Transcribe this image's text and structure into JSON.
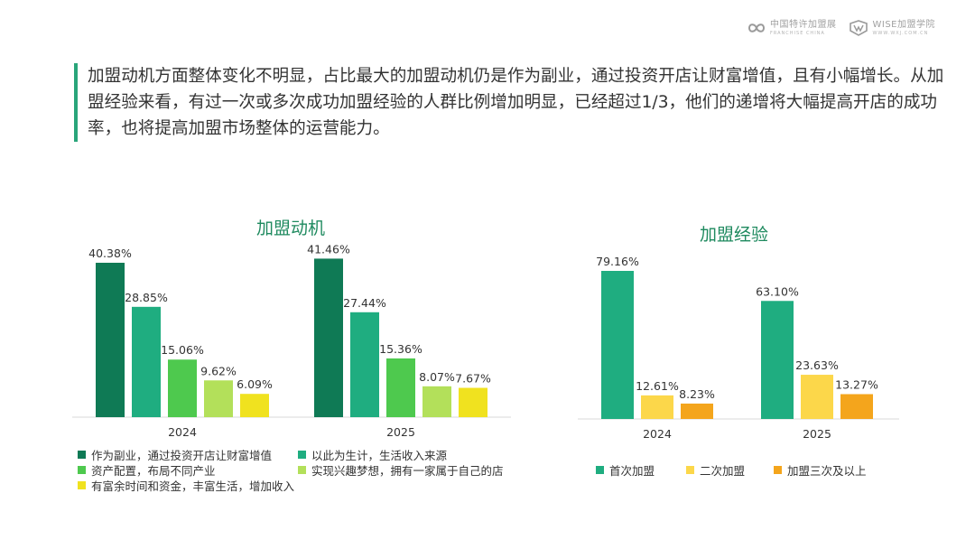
{
  "brand": {
    "logo1_main": "中国特许加盟展",
    "logo1_sub": "FRANCHISE CHINA",
    "logo2_main": "WISE加盟学院",
    "logo2_sub": "WWW.WXJ.COM.CN"
  },
  "intro_text": "加盟动机方面整体变化不明显，占比最大的加盟动机仍是作为副业，通过投资开店让财富增值，且有小幅增长。从加盟经验来看，有过一次或多次成功加盟经验的人群比例增加明显，已经超过1/3，他们的递增将大幅提高开店的成功率，也将提高加盟市场整体的运营能力。",
  "chart_data": [
    {
      "type": "bar",
      "title": "加盟动机",
      "categories": [
        "2024",
        "2025"
      ],
      "series": [
        {
          "name": "作为副业，通过投资开店让财富增值",
          "values": [
            40.38,
            41.46
          ],
          "labels": [
            "40.38%",
            "41.46%"
          ],
          "color": "#0f7a55"
        },
        {
          "name": "以此为生计，生活收入来源",
          "values": [
            28.85,
            27.44
          ],
          "labels": [
            "28.85%",
            "27.44%"
          ],
          "color": "#1fad80"
        },
        {
          "name": "资产配置，布局不同产业",
          "values": [
            15.06,
            15.36
          ],
          "labels": [
            "15.06%",
            "15.36%"
          ],
          "color": "#4ec94e"
        },
        {
          "name": "实现兴趣梦想，拥有一家属于自己的店",
          "values": [
            9.62,
            8.07
          ],
          "labels": [
            "9.62%",
            "8.07%"
          ],
          "color": "#b3e05a"
        },
        {
          "name": "有富余时间和资金，丰富生活，增加收入",
          "values": [
            6.09,
            7.67
          ],
          "labels": [
            "6.09%",
            "7.67%"
          ],
          "color": "#f0e21f"
        }
      ],
      "ylim": [
        0,
        45
      ],
      "legend_position": "bottom"
    },
    {
      "type": "bar",
      "title": "加盟经验",
      "categories": [
        "2024",
        "2025"
      ],
      "series": [
        {
          "name": "首次加盟",
          "values": [
            79.16,
            63.1
          ],
          "labels": [
            "79.16%",
            "63.10%"
          ],
          "color": "#1fad80"
        },
        {
          "name": "二次加盟",
          "values": [
            12.61,
            23.63
          ],
          "labels": [
            "12.61%",
            "23.63%"
          ],
          "color": "#fcd74a"
        },
        {
          "name": "加盟三次及以上",
          "values": [
            8.23,
            13.27
          ],
          "labels": [
            "8.23%",
            "13.27%"
          ],
          "color": "#f4a51c"
        }
      ],
      "ylim": [
        0,
        85
      ],
      "legend_position": "bottom"
    }
  ]
}
